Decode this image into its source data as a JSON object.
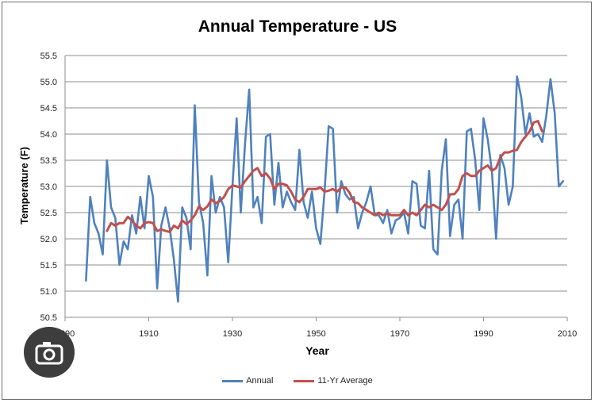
{
  "chart_data": {
    "type": "line",
    "title": "Annual Temperature - US",
    "xlabel": "Year",
    "ylabel": "Temperature (F)",
    "xlim": [
      1890,
      2010
    ],
    "ylim": [
      50.5,
      55.5
    ],
    "x_ticks": [
      "1890",
      "1910",
      "1930",
      "1950",
      "1970",
      "1990",
      "2010"
    ],
    "x_tick_values": [
      1890,
      1910,
      1930,
      1950,
      1970,
      1990,
      2010
    ],
    "y_ticks": [
      "50.5",
      "51.0",
      "51.5",
      "52.0",
      "52.5",
      "53.0",
      "53.5",
      "54.0",
      "54.5",
      "55.0",
      "55.5"
    ],
    "y_tick_values": [
      50.5,
      51.0,
      51.5,
      52.0,
      52.5,
      53.0,
      53.5,
      54.0,
      54.5,
      55.0,
      55.5
    ],
    "grid": "horizontal",
    "legend_position": "bottom",
    "series": [
      {
        "name": "Annual",
        "color": "#4f81bd",
        "x": [
          1895,
          1896,
          1897,
          1898,
          1899,
          1900,
          1901,
          1902,
          1903,
          1904,
          1905,
          1906,
          1907,
          1908,
          1909,
          1910,
          1911,
          1912,
          1913,
          1914,
          1915,
          1916,
          1917,
          1918,
          1919,
          1920,
          1921,
          1922,
          1923,
          1924,
          1925,
          1926,
          1927,
          1928,
          1929,
          1930,
          1931,
          1932,
          1933,
          1934,
          1935,
          1936,
          1937,
          1938,
          1939,
          1940,
          1941,
          1942,
          1943,
          1944,
          1945,
          1946,
          1947,
          1948,
          1949,
          1950,
          1951,
          1952,
          1953,
          1954,
          1955,
          1956,
          1957,
          1958,
          1959,
          1960,
          1961,
          1962,
          1963,
          1964,
          1965,
          1966,
          1967,
          1968,
          1969,
          1970,
          1971,
          1972,
          1973,
          1974,
          1975,
          1976,
          1977,
          1978,
          1979,
          1980,
          1981,
          1982,
          1983,
          1984,
          1985,
          1986,
          1987,
          1988,
          1989,
          1990,
          1991,
          1992,
          1993,
          1994,
          1995,
          1996,
          1997,
          1998,
          1999,
          2000,
          2001,
          2002,
          2003,
          2004,
          2005,
          2006,
          2007,
          2008,
          2009
        ],
        "values": [
          51.2,
          52.8,
          52.3,
          52.1,
          51.7,
          53.5,
          52.6,
          52.4,
          51.5,
          51.95,
          51.8,
          52.45,
          52.1,
          52.8,
          52.2,
          53.2,
          52.8,
          51.05,
          52.25,
          52.6,
          52.2,
          51.6,
          50.8,
          52.6,
          52.4,
          51.8,
          54.55,
          52.7,
          52.3,
          51.3,
          53.2,
          52.5,
          52.8,
          52.6,
          51.55,
          53.0,
          54.3,
          52.5,
          53.8,
          54.85,
          52.6,
          52.8,
          52.3,
          53.95,
          54.0,
          52.65,
          53.45,
          52.6,
          52.9,
          52.7,
          52.55,
          53.7,
          52.7,
          52.4,
          52.9,
          52.2,
          51.9,
          52.9,
          54.15,
          54.1,
          52.5,
          53.1,
          52.85,
          52.75,
          52.8,
          52.2,
          52.5,
          52.7,
          53.0,
          52.45,
          52.45,
          52.3,
          52.55,
          52.1,
          52.35,
          52.4,
          52.5,
          52.1,
          53.1,
          53.05,
          52.25,
          52.2,
          53.3,
          51.8,
          51.7,
          53.3,
          53.9,
          52.05,
          52.65,
          52.75,
          52.0,
          54.05,
          54.1,
          53.5,
          52.55,
          54.3,
          53.9,
          53.3,
          52.0,
          53.6,
          53.35,
          52.65,
          53.0,
          55.1,
          54.7,
          54.0,
          54.4,
          53.95,
          54.0,
          53.85,
          54.35,
          55.05,
          54.4,
          53.0,
          53.1
        ]
      },
      {
        "name": "11-Yr Average",
        "color": "#c0504d",
        "x": [
          1900,
          1901,
          1902,
          1903,
          1904,
          1905,
          1906,
          1907,
          1908,
          1909,
          1910,
          1911,
          1912,
          1913,
          1914,
          1915,
          1916,
          1917,
          1918,
          1919,
          1920,
          1921,
          1922,
          1923,
          1924,
          1925,
          1926,
          1927,
          1928,
          1929,
          1930,
          1931,
          1932,
          1933,
          1934,
          1935,
          1936,
          1937,
          1938,
          1939,
          1940,
          1941,
          1942,
          1943,
          1944,
          1945,
          1946,
          1947,
          1948,
          1949,
          1950,
          1951,
          1952,
          1953,
          1954,
          1955,
          1956,
          1957,
          1958,
          1959,
          1960,
          1961,
          1962,
          1963,
          1964,
          1965,
          1966,
          1967,
          1968,
          1969,
          1970,
          1971,
          1972,
          1973,
          1974,
          1975,
          1976,
          1977,
          1978,
          1979,
          1980,
          1981,
          1982,
          1983,
          1984,
          1985,
          1986,
          1987,
          1988,
          1989,
          1990,
          1991,
          1992,
          1993,
          1994,
          1995,
          1996,
          1997,
          1998,
          1999,
          2000,
          2001,
          2002,
          2003,
          2004
        ],
        "values": [
          52.15,
          52.3,
          52.25,
          52.3,
          52.3,
          52.42,
          52.35,
          52.25,
          52.2,
          52.3,
          52.32,
          52.3,
          52.15,
          52.18,
          52.15,
          52.13,
          52.25,
          52.2,
          52.35,
          52.28,
          52.35,
          52.45,
          52.62,
          52.55,
          52.62,
          52.75,
          52.68,
          52.72,
          52.8,
          52.95,
          53.02,
          53.0,
          52.98,
          53.1,
          53.2,
          53.3,
          53.35,
          53.2,
          53.25,
          53.15,
          52.95,
          53.05,
          53.05,
          53.02,
          52.9,
          52.75,
          52.7,
          52.8,
          52.95,
          52.95,
          52.95,
          52.98,
          52.9,
          52.92,
          52.95,
          52.9,
          52.98,
          52.98,
          52.88,
          52.7,
          52.68,
          52.6,
          52.55,
          52.5,
          52.45,
          52.5,
          52.45,
          52.48,
          52.45,
          52.45,
          52.45,
          52.55,
          52.45,
          52.5,
          52.45,
          52.55,
          52.65,
          52.6,
          52.65,
          52.6,
          52.55,
          52.65,
          52.85,
          52.85,
          52.95,
          53.2,
          53.25,
          53.2,
          53.2,
          53.3,
          53.35,
          53.4,
          53.3,
          53.35,
          53.55,
          53.65,
          53.65,
          53.68,
          53.7,
          53.85,
          53.95,
          54.05,
          54.22,
          54.25,
          54.05
        ]
      }
    ]
  }
}
